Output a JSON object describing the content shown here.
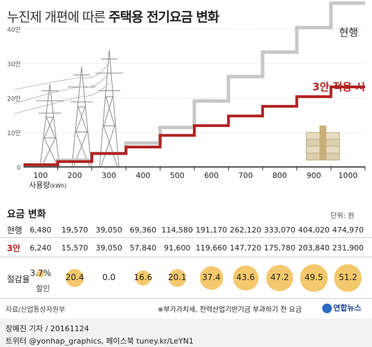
{
  "title_light": "누진제 개편에 따른",
  "title_bold": "주택용 전기요금 변화",
  "axis_unit": "사용량",
  "axis_unit_small": "(kWh)",
  "table_title": "요금 변화",
  "unit_note": "단위: 원",
  "row_current_label": "현행",
  "row_new_label": "3안",
  "row_discount_label": "절감율",
  "discount_suffix": "할인",
  "source": "자료/산업통상자원부",
  "footnote": "※부가가치세, 전력산업기반기금 부과하기 전 요금",
  "byline": "장예진 기자 / 20161124",
  "social": "트위터 @yonhap_graphics, 페이스북 tuney.kr/LeYN1",
  "logo_text": "연합뉴스",
  "colors": {
    "current": "#c8c8c8",
    "new": "#b22222",
    "circle": "#f4c86d",
    "axis": "#333333"
  },
  "icons": [
    "power-tower-icon",
    "money-stack-icon"
  ],
  "chart_data": {
    "type": "line",
    "step": true,
    "title": "누진제 개편에 따른 주택용 전기요금 변화",
    "xlabel": "사용량(kWh)",
    "ylabel": "",
    "categories": [
      "100",
      "200",
      "300",
      "400",
      "500",
      "600",
      "700",
      "800",
      "900",
      "1000"
    ],
    "y_ticks": [
      "0",
      "10만",
      "20만",
      "30만",
      "40만"
    ],
    "ylim": [
      0,
      450000
    ],
    "grid": true,
    "series": [
      {
        "name": "현행",
        "color": "#c8c8c8",
        "values": [
          6480,
          19570,
          39050,
          69360,
          114580,
          191170,
          262120,
          333070,
          404020,
          474970
        ],
        "display": [
          "6,480",
          "19,570",
          "39,050",
          "69,360",
          "114,580",
          "191,170",
          "262,120",
          "333,070",
          "404,020",
          "474,970"
        ]
      },
      {
        "name": "3안 적용 시",
        "color": "#b22222",
        "values": [
          6240,
          15570,
          39050,
          57840,
          91600,
          119660,
          147720,
          175780,
          203840,
          231900
        ],
        "display": [
          "6,240",
          "15,570",
          "39,050",
          "57,840",
          "91,600",
          "119,660",
          "147,720",
          "175,780",
          "203,840",
          "231,900"
        ]
      }
    ],
    "discount_rate": [
      3.7,
      20.4,
      0.0,
      16.6,
      20.1,
      37.4,
      43.6,
      47.2,
      49.5,
      51.2
    ],
    "discount_display": [
      "3.7%",
      "20.4",
      "0.0",
      "16.6",
      "20.1",
      "37.4",
      "43.6",
      "47.2",
      "49.5",
      "51.2"
    ]
  }
}
